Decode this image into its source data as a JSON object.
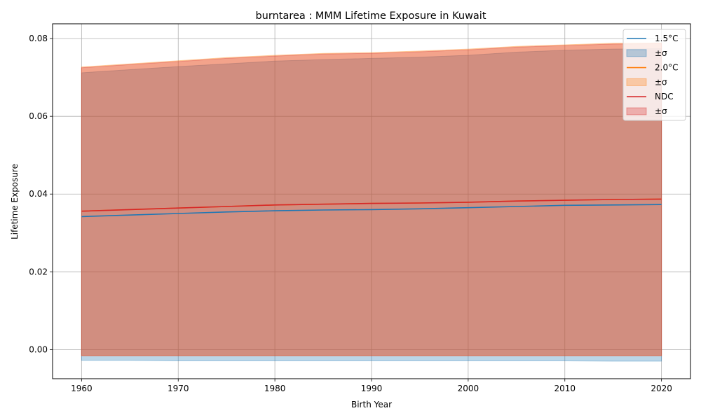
{
  "chart_data": {
    "type": "area",
    "title": "burntarea : MMM Lifetime Exposure in Kuwait",
    "xlabel": "Birth Year",
    "ylabel": "Lifetime Exposure",
    "xlim": [
      1957,
      2023
    ],
    "ylim": [
      -0.0075,
      0.0838
    ],
    "xticks": [
      1960,
      1970,
      1980,
      1990,
      2000,
      2010,
      2020
    ],
    "xtick_labels": [
      "1960",
      "1970",
      "1980",
      "1990",
      "2000",
      "2010",
      "2020"
    ],
    "yticks": [
      0.0,
      0.02,
      0.04,
      0.06,
      0.08
    ],
    "ytick_labels": [
      "0.00",
      "0.02",
      "0.04",
      "0.06",
      "0.08"
    ],
    "grid": true,
    "legend_position": "top-right",
    "x": [
      1960,
      1965,
      1970,
      1975,
      1980,
      1985,
      1990,
      1995,
      2000,
      2005,
      2010,
      2015,
      2020
    ],
    "series": [
      {
        "name": "1.5°C",
        "color": "#1f77b4",
        "band_color": "#1f77b4",
        "values": [
          0.0342,
          0.0346,
          0.035,
          0.0354,
          0.0357,
          0.0359,
          0.036,
          0.0362,
          0.0365,
          0.0368,
          0.0371,
          0.0372,
          0.0373
        ],
        "upper": [
          0.0712,
          0.072,
          0.0728,
          0.0735,
          0.0742,
          0.0746,
          0.0749,
          0.0752,
          0.0757,
          0.0765,
          0.077,
          0.0773,
          0.0774
        ],
        "lower": [
          -0.0028,
          -0.0028,
          -0.0029,
          -0.0029,
          -0.0029,
          -0.0029,
          -0.0029,
          -0.0029,
          -0.0029,
          -0.0029,
          -0.0029,
          -0.003,
          -0.003
        ]
      },
      {
        "name": "2.0°C",
        "color": "#ff7f0e",
        "band_color": "#ff7f0e",
        "values": [
          0.0356,
          0.036,
          0.0364,
          0.0368,
          0.0372,
          0.0374,
          0.0376,
          0.0377,
          0.0379,
          0.0382,
          0.0384,
          0.0386,
          0.0387
        ],
        "upper": [
          0.0727,
          0.0735,
          0.0743,
          0.0751,
          0.0757,
          0.0762,
          0.0764,
          0.0768,
          0.0773,
          0.078,
          0.0784,
          0.0788,
          0.0789
        ],
        "lower": [
          -0.0016,
          -0.0016,
          -0.0016,
          -0.0016,
          -0.0016,
          -0.0016,
          -0.0016,
          -0.0016,
          -0.0016,
          -0.0016,
          -0.0016,
          -0.0016,
          -0.0016
        ]
      },
      {
        "name": "NDC",
        "color": "#d62728",
        "band_color": "#d62728",
        "values": [
          0.0356,
          0.036,
          0.0364,
          0.0368,
          0.0372,
          0.0374,
          0.0376,
          0.0377,
          0.0379,
          0.0382,
          0.0384,
          0.0386,
          0.0387
        ],
        "upper": [
          0.0725,
          0.0733,
          0.0741,
          0.0749,
          0.0755,
          0.076,
          0.0762,
          0.0766,
          0.0771,
          0.0778,
          0.0782,
          0.0786,
          0.0787
        ],
        "lower": [
          -0.0016,
          -0.0016,
          -0.0016,
          -0.0016,
          -0.0016,
          -0.0016,
          -0.0016,
          -0.0016,
          -0.0016,
          -0.0016,
          -0.0016,
          -0.0016,
          -0.0016
        ]
      }
    ],
    "legend": [
      {
        "label": "1.5°C",
        "kind": "line",
        "color": "#1f77b4"
      },
      {
        "label": "±σ",
        "kind": "patch",
        "color": "#1f77b4"
      },
      {
        "label": "2.0°C",
        "kind": "line",
        "color": "#ff7f0e"
      },
      {
        "label": "±σ",
        "kind": "patch",
        "color": "#ff7f0e"
      },
      {
        "label": "NDC",
        "kind": "line",
        "color": "#d62728"
      },
      {
        "label": "±σ",
        "kind": "patch",
        "color": "#d62728"
      }
    ]
  }
}
